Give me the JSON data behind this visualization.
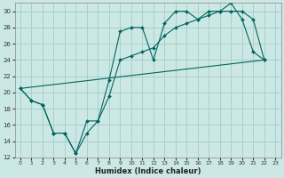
{
  "xlabel": "Humidex (Indice chaleur)",
  "background_color": "#cce8e4",
  "grid_color": "#aacfcc",
  "line_color": "#006660",
  "xlim": [
    -0.5,
    23.5
  ],
  "ylim": [
    12,
    31
  ],
  "xticks": [
    0,
    1,
    2,
    3,
    4,
    5,
    6,
    7,
    8,
    9,
    10,
    11,
    12,
    13,
    14,
    15,
    16,
    17,
    18,
    19,
    20,
    21,
    22,
    23
  ],
  "yticks": [
    12,
    14,
    16,
    18,
    20,
    22,
    24,
    26,
    28,
    30
  ],
  "series1_x": [
    0,
    1,
    2,
    3,
    4,
    5,
    6,
    7,
    8,
    9,
    10,
    11,
    12,
    13,
    14,
    15,
    16,
    17,
    18,
    19,
    20,
    21,
    22
  ],
  "series1_y": [
    20.5,
    19.0,
    18.5,
    15.0,
    15.0,
    12.5,
    15.0,
    16.5,
    21.5,
    27.5,
    28.0,
    28.0,
    24.0,
    28.5,
    30.0,
    30.0,
    29.0,
    30.0,
    30.0,
    31.0,
    29.0,
    25.0,
    24.0
  ],
  "series2_x": [
    0,
    1,
    2,
    3,
    4,
    5,
    6,
    7,
    8,
    9,
    10,
    11,
    12,
    13,
    14,
    15,
    16,
    17,
    18,
    19,
    20,
    21,
    22
  ],
  "series2_y": [
    20.5,
    19.0,
    18.5,
    15.0,
    15.0,
    12.5,
    16.5,
    16.5,
    19.5,
    24.0,
    24.5,
    25.0,
    25.5,
    27.0,
    28.0,
    28.5,
    29.0,
    29.5,
    30.0,
    30.0,
    30.0,
    29.0,
    24.0
  ],
  "series3_x": [
    0,
    22
  ],
  "series3_y": [
    20.5,
    24.0
  ]
}
